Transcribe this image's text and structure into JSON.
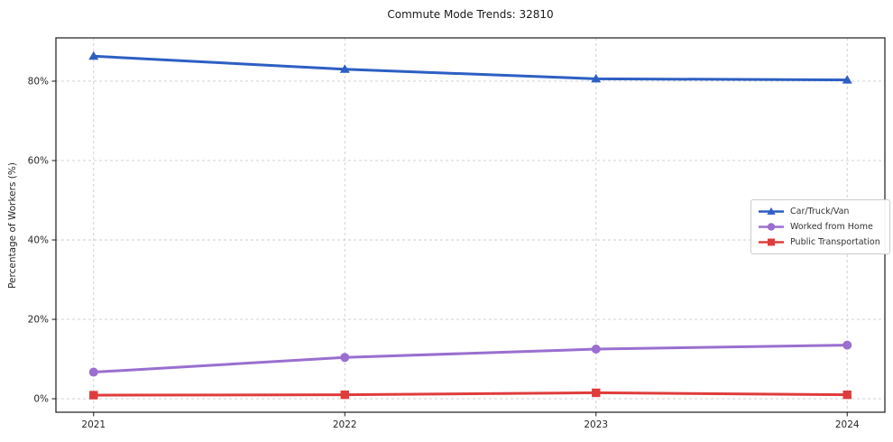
{
  "chart_data": {
    "type": "line",
    "title": "Commute Mode Trends: 32810",
    "xlabel": "",
    "ylabel": "Percentage of Workers (%)",
    "categories": [
      "2021",
      "2022",
      "2023",
      "2024"
    ],
    "series": [
      {
        "name": "Car/Truck/Van",
        "color": "#2d5fc3",
        "marker": "triangle",
        "values": [
          86.3,
          83.0,
          80.6,
          80.3
        ]
      },
      {
        "name": "Worked from Home",
        "color": "#9a6fd0",
        "marker": "circle",
        "values": [
          6.7,
          10.4,
          12.5,
          13.5
        ]
      },
      {
        "name": "Public Transportation",
        "color": "#e03c3c",
        "marker": "square",
        "values": [
          0.9,
          1.0,
          1.5,
          1.0
        ]
      }
    ],
    "yticks": {
      "values": [
        0,
        20,
        40,
        60,
        80
      ],
      "labels": [
        "0%",
        "20%",
        "40%",
        "60%",
        "80%"
      ]
    },
    "ylim": [
      -3.4,
      90.9
    ],
    "xlim": [
      -0.15,
      3.15
    ],
    "grid": "dashed both axes",
    "legend_position": "center right",
    "colors": {
      "grid": "#cccccc",
      "spine": "#1a1a1a",
      "tick_label": "#262626",
      "background": "#ffffff"
    }
  }
}
